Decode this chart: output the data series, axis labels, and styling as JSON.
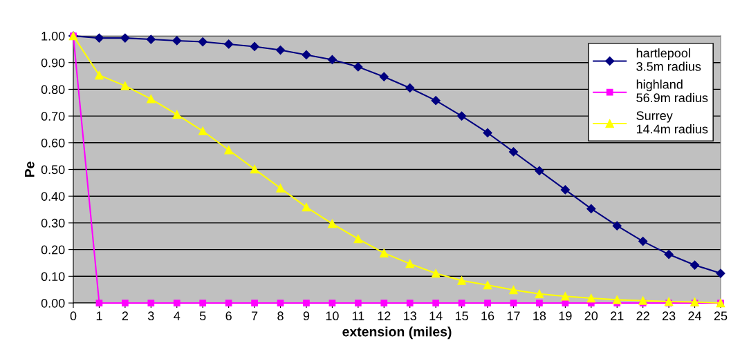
{
  "chart_data": {
    "type": "line",
    "xlabel": "extension (miles)",
    "ylabel": "Pe",
    "x": [
      0,
      1,
      2,
      3,
      4,
      5,
      6,
      7,
      8,
      9,
      10,
      11,
      12,
      13,
      14,
      15,
      16,
      17,
      18,
      19,
      20,
      21,
      22,
      23,
      24,
      25
    ],
    "xlim": [
      0,
      25
    ],
    "xticks": [
      0,
      1,
      2,
      3,
      4,
      5,
      6,
      7,
      8,
      9,
      10,
      11,
      12,
      13,
      14,
      15,
      16,
      17,
      18,
      19,
      20,
      21,
      22,
      23,
      24,
      25
    ],
    "ylim": [
      0,
      1
    ],
    "yticks": [
      {
        "value": 0,
        "label": "0.00"
      },
      {
        "value": 0.1,
        "label": "0.10"
      },
      {
        "value": 0.2,
        "label": "0.20"
      },
      {
        "value": 0.3,
        "label": "0.30"
      },
      {
        "value": 0.4,
        "label": "0.40"
      },
      {
        "value": 0.5,
        "label": "0.50"
      },
      {
        "value": 0.6,
        "label": "0.60"
      },
      {
        "value": 0.7,
        "label": "0.70"
      },
      {
        "value": 0.8,
        "label": "0.80"
      },
      {
        "value": 0.9,
        "label": "0.90"
      },
      {
        "value": 1,
        "label": "1.00"
      }
    ],
    "grid": "y",
    "legend": "top right",
    "series": [
      {
        "name": "hartlepool\n3.5m radius",
        "color": "#000080",
        "marker": "diamond",
        "values": [
          1.0,
          0.992,
          0.992,
          0.987,
          0.982,
          0.978,
          0.969,
          0.96,
          0.947,
          0.929,
          0.911,
          0.884,
          0.847,
          0.805,
          0.758,
          0.7,
          0.637,
          0.566,
          0.495,
          0.424,
          0.353,
          0.289,
          0.231,
          0.182,
          0.142,
          0.111
        ]
      },
      {
        "name": "highland\n56.9m radius",
        "color": "#ff00ff",
        "marker": "square",
        "values": [
          1.0,
          0,
          0,
          0,
          0,
          0,
          0,
          0,
          0,
          0,
          0,
          0,
          0,
          0,
          0,
          0,
          0,
          0,
          0,
          0,
          0,
          0,
          0,
          0,
          0,
          0
        ]
      },
      {
        "name": "Surrey\n14.4m radius",
        "color": "#ffff00",
        "marker": "triangle",
        "values": [
          1.0,
          0.853,
          0.813,
          0.764,
          0.706,
          0.644,
          0.573,
          0.501,
          0.43,
          0.359,
          0.297,
          0.24,
          0.187,
          0.147,
          0.111,
          0.084,
          0.067,
          0.049,
          0.034,
          0.025,
          0.018,
          0.012,
          0.009,
          0.005,
          0.004,
          0.0
        ]
      }
    ]
  }
}
